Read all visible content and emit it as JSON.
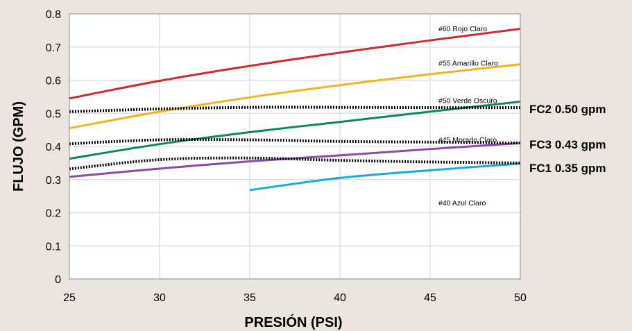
{
  "chart_data": {
    "type": "line",
    "title": "",
    "xlabel": "PRESIÓN (PSI)",
    "ylabel": "FLUJO (GPM)",
    "xlim": [
      25,
      50
    ],
    "ylim": [
      0,
      0.8
    ],
    "x_ticks": [
      "25",
      "30",
      "35",
      "40",
      "45",
      "50"
    ],
    "y_ticks": [
      "0",
      "0.1",
      "0.2",
      "0.3",
      "0.4",
      "0.5",
      "0.6",
      "0.7",
      "0.8"
    ],
    "grid": true,
    "series": [
      {
        "name": "#60 Rojo Claro",
        "color": "#d12b2f",
        "x": [
          25,
          30,
          35,
          40,
          45,
          50
        ],
        "y": [
          0.545,
          0.598,
          0.643,
          0.683,
          0.72,
          0.755
        ]
      },
      {
        "name": "#55 Amarillo Claro",
        "color": "#f3b320",
        "x": [
          25,
          30,
          35,
          40,
          45,
          50
        ],
        "y": [
          0.455,
          0.505,
          0.548,
          0.585,
          0.618,
          0.648
        ]
      },
      {
        "name": "#50 Verde Oscuro",
        "color": "#0b8a5a",
        "x": [
          25,
          30,
          35,
          40,
          45,
          50
        ],
        "y": [
          0.363,
          0.407,
          0.443,
          0.474,
          0.505,
          0.535
        ]
      },
      {
        "name": "#45 Morado Claro",
        "color": "#8e4aa4",
        "x": [
          25,
          30,
          35,
          40,
          45,
          50
        ],
        "y": [
          0.308,
          0.333,
          0.355,
          0.373,
          0.392,
          0.41
        ]
      },
      {
        "name": "#40 Azul Claro",
        "color": "#1aa9e0",
        "x": [
          35,
          40,
          45,
          50
        ],
        "y": [
          0.268,
          0.305,
          0.328,
          0.348
        ]
      }
    ],
    "reference_lines": [
      {
        "label": "FC2 0.50 gpm",
        "style": "dotted",
        "x": [
          25,
          30,
          35,
          40,
          45,
          50
        ],
        "y": [
          0.505,
          0.513,
          0.518,
          0.518,
          0.517,
          0.517
        ]
      },
      {
        "label": "FC3 0.43 gpm",
        "style": "dotted",
        "x": [
          25,
          30,
          35,
          40,
          45,
          50
        ],
        "y": [
          0.408,
          0.42,
          0.42,
          0.415,
          0.413,
          0.41
        ]
      },
      {
        "label": "FC1 0.35 gpm",
        "style": "dotted",
        "x": [
          25,
          30,
          35,
          40,
          45,
          50
        ],
        "y": [
          0.332,
          0.36,
          0.365,
          0.358,
          0.353,
          0.35
        ]
      }
    ]
  }
}
